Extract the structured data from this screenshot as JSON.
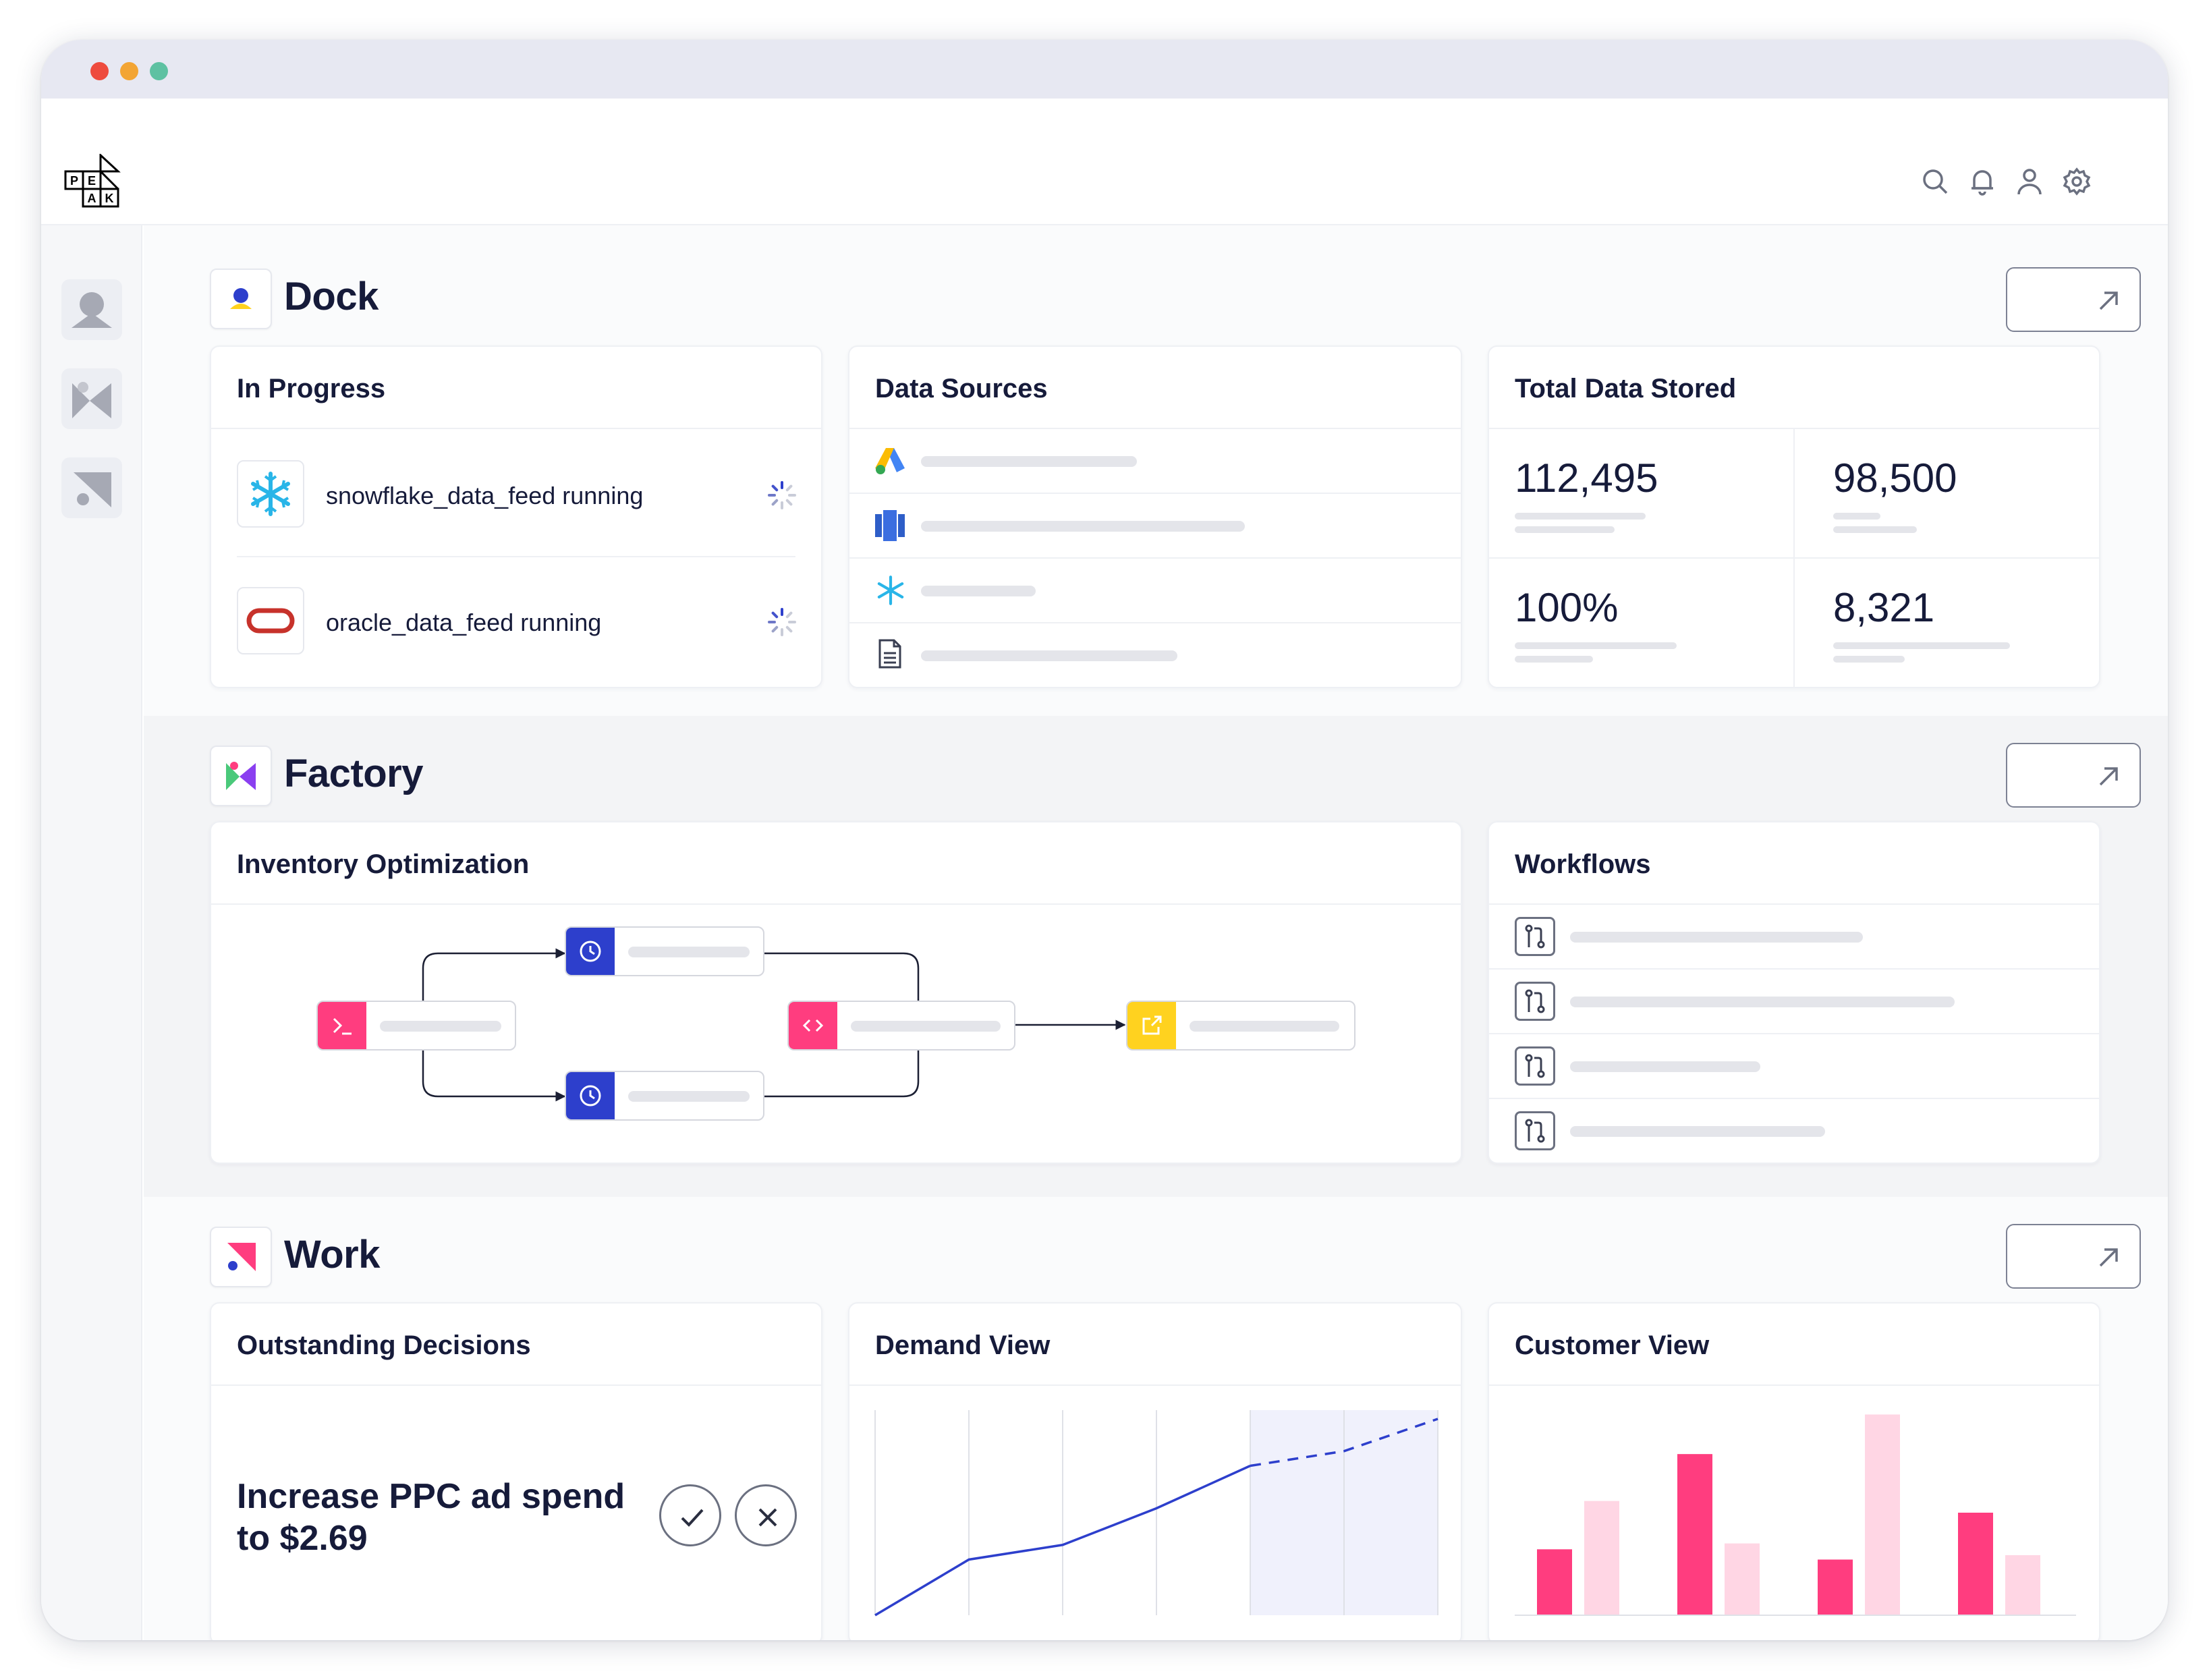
{
  "app": {
    "logo_alt": "PEAK",
    "logo_letters": [
      "P",
      "E",
      "A",
      "K"
    ]
  },
  "colors": {
    "brand_blue": "#2d3fcc",
    "brand_pink": "#ff3d7f",
    "pink_light": "#ffd6e4",
    "yellow": "#ffd21f",
    "oracle_red": "#c7322b",
    "snowflake_blue": "#29b5e8"
  },
  "topbar": {
    "icons": [
      "search-icon",
      "bell-icon",
      "user-icon",
      "gear-icon"
    ]
  },
  "sidebar": {
    "items": [
      "dock-nav-icon",
      "factory-nav-icon",
      "work-nav-icon"
    ]
  },
  "dock": {
    "title": "Dock",
    "in_progress": {
      "title": "In Progress",
      "items": [
        {
          "text": "snowflake_data_feed running",
          "icon": "snowflake-icon"
        },
        {
          "text": "oracle_data_feed running",
          "icon": "oracle-icon"
        }
      ]
    },
    "data_sources": {
      "title": "Data Sources",
      "items": [
        {
          "icon": "google-ads-icon"
        },
        {
          "icon": "database-icon"
        },
        {
          "icon": "snowflake-icon"
        },
        {
          "icon": "document-icon"
        }
      ]
    },
    "total_data_stored": {
      "title": "Total Data Stored",
      "stats": [
        "112,495",
        "98,500",
        "100%",
        "8,321"
      ]
    }
  },
  "factory": {
    "title": "Factory",
    "inventory": {
      "title": "Inventory Optimization",
      "nodes": [
        {
          "name": "terminal-node",
          "icon": "terminal-icon"
        },
        {
          "name": "schedule-node-top",
          "icon": "clock-icon"
        },
        {
          "name": "schedule-node-bottom",
          "icon": "clock-icon"
        },
        {
          "name": "code-node",
          "icon": "code-icon"
        },
        {
          "name": "export-node",
          "icon": "export-icon"
        }
      ]
    },
    "workflows": {
      "title": "Workflows",
      "items": [
        {
          "icon": "git-branch-icon"
        },
        {
          "icon": "git-branch-icon"
        },
        {
          "icon": "git-branch-icon"
        },
        {
          "icon": "git-branch-icon"
        }
      ]
    }
  },
  "work": {
    "title": "Work",
    "outstanding": {
      "title": "Outstanding Decisions",
      "decision_line1": "Increase PPC ad spend",
      "decision_line2": "to $2.69"
    },
    "demand_view": {
      "title": "Demand View"
    },
    "customer_view": {
      "title": "Customer View"
    }
  },
  "chart_data": [
    {
      "type": "line",
      "x": [
        0,
        1,
        2,
        3,
        4,
        5,
        6
      ],
      "series": [
        {
          "values": [
            0.0,
            0.38,
            0.48,
            0.73,
            1.02,
            null,
            null
          ]
        },
        {
          "values": [
            null,
            null,
            null,
            null,
            1.02,
            1.12,
            1.34
          ]
        }
      ],
      "forecast_region_start": 4,
      "grid": true
    },
    {
      "type": "bar",
      "categories": [
        "1",
        "2",
        "3",
        "4"
      ],
      "series": [
        {
          "values": [
            45,
            110,
            38,
            70
          ]
        },
        {
          "values": [
            78,
            49,
            137,
            41
          ]
        }
      ],
      "ylim": [
        0,
        140
      ]
    }
  ]
}
